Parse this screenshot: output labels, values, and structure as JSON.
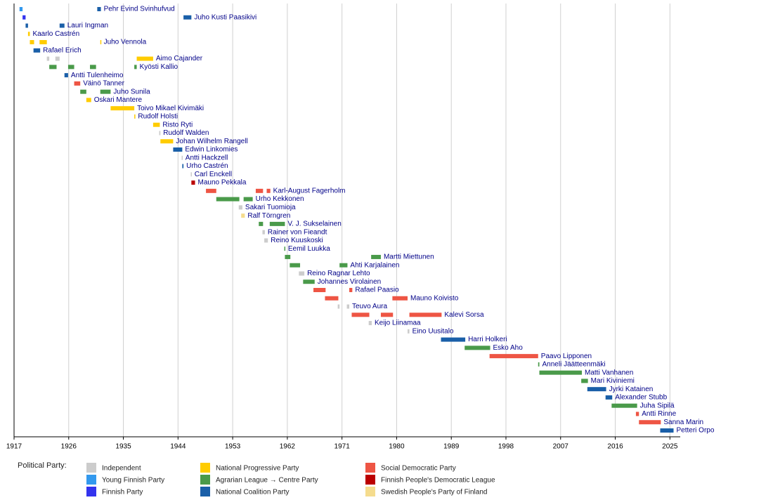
{
  "chart_data": {
    "type": "timeline",
    "xlim": [
      1917,
      2026.7
    ],
    "xticks": [
      1917,
      1926,
      1935,
      1944,
      1953,
      1962,
      1971,
      1980,
      1989,
      1998,
      2007,
      2016,
      2025
    ],
    "grid": true,
    "legend_title": "Political Party:",
    "parties": [
      {
        "name": "Independent",
        "color": "#cccccc"
      },
      {
        "name": "Young Finnish Party",
        "color": "#3399ee"
      },
      {
        "name": "Finnish Party",
        "color": "#3333ee"
      },
      {
        "name": "National Progressive Party",
        "color": "#ffcc00"
      },
      {
        "name": "Agrarian League → Centre Party",
        "color": "#4a9a4a"
      },
      {
        "name": "National Coalition Party",
        "color": "#1a5fa8"
      },
      {
        "name": "Social Democratic Party",
        "color": "#ee5544"
      },
      {
        "name": "Finnish People's Democratic League",
        "color": "#bb0000"
      },
      {
        "name": "Swedish People's Party of Finland",
        "color": "#f5dc8e"
      }
    ],
    "rows": [
      {
        "name": "Pehr Evind Svinhufvud",
        "terms": [
          {
            "start": 1917.9,
            "end": 1918.4,
            "party": "Young Finnish Party"
          },
          {
            "start": 1930.7,
            "end": 1931.3,
            "party": "National Coalition Party"
          }
        ]
      },
      {
        "name": "Juho Kusti Paasikivi",
        "terms": [
          {
            "start": 1918.4,
            "end": 1918.9,
            "party": "Finnish Party"
          },
          {
            "start": 1944.9,
            "end": 1946.2,
            "party": "National Coalition Party"
          }
        ]
      },
      {
        "name": "Lauri Ingman",
        "terms": [
          {
            "start": 1918.9,
            "end": 1919.3,
            "party": "National Coalition Party"
          },
          {
            "start": 1924.5,
            "end": 1925.3,
            "party": "National Coalition Party"
          }
        ]
      },
      {
        "name": "Kaarlo Castrén",
        "terms": [
          {
            "start": 1919.3,
            "end": 1919.6,
            "party": "National Progressive Party"
          }
        ]
      },
      {
        "name": "Juho Vennola",
        "terms": [
          {
            "start": 1919.6,
            "end": 1920.3,
            "party": "National Progressive Party"
          },
          {
            "start": 1921.2,
            "end": 1922.4,
            "party": "National Progressive Party"
          },
          {
            "start": 1931.2,
            "end": 1931.3,
            "party": "National Progressive Party"
          }
        ]
      },
      {
        "name": "Rafael Erich",
        "terms": [
          {
            "start": 1920.2,
            "end": 1921.3,
            "party": "National Coalition Party"
          }
        ]
      },
      {
        "name": "Aimo Cajander",
        "terms": [
          {
            "start": 1922.4,
            "end": 1922.8,
            "party": "Independent"
          },
          {
            "start": 1923.8,
            "end": 1924.5,
            "party": "Independent"
          },
          {
            "start": 1937.2,
            "end": 1939.9,
            "party": "National Progressive Party"
          }
        ]
      },
      {
        "name": "Kyösti Kallio",
        "terms": [
          {
            "start": 1922.8,
            "end": 1924.0,
            "party": "Agrarian League → Centre Party"
          },
          {
            "start": 1925.9,
            "end": 1926.9,
            "party": "Agrarian League → Centre Party"
          },
          {
            "start": 1929.5,
            "end": 1930.5,
            "party": "Agrarian League → Centre Party"
          },
          {
            "start": 1936.8,
            "end": 1937.2,
            "party": "Agrarian League → Centre Party"
          }
        ]
      },
      {
        "name": "Antti Tulenheimo",
        "terms": [
          {
            "start": 1925.3,
            "end": 1925.9,
            "party": "National Coalition Party"
          }
        ]
      },
      {
        "name": "Väinö Tanner",
        "terms": [
          {
            "start": 1926.9,
            "end": 1927.9,
            "party": "Social Democratic Party"
          }
        ]
      },
      {
        "name": "Juho Sunila",
        "terms": [
          {
            "start": 1927.9,
            "end": 1928.9,
            "party": "Agrarian League → Centre Party"
          },
          {
            "start": 1931.2,
            "end": 1932.9,
            "party": "Agrarian League → Centre Party"
          }
        ]
      },
      {
        "name": "Oskari Mantere",
        "terms": [
          {
            "start": 1928.9,
            "end": 1929.7,
            "party": "National Progressive Party"
          }
        ]
      },
      {
        "name": "Toivo Mikael Kivimäki",
        "terms": [
          {
            "start": 1932.9,
            "end": 1936.8,
            "party": "National Progressive Party"
          }
        ]
      },
      {
        "name": "Rudolf Holsti",
        "terms": [
          {
            "start": 1936.8,
            "end": 1936.95,
            "party": "National Progressive Party"
          }
        ]
      },
      {
        "name": "Risto Ryti",
        "terms": [
          {
            "start": 1939.9,
            "end": 1941.0,
            "party": "National Progressive Party"
          }
        ]
      },
      {
        "name": "Rudolf Walden",
        "terms": [
          {
            "start": 1940.9,
            "end": 1941.1,
            "party": "Independent"
          }
        ]
      },
      {
        "name": "Johan Wilhelm Rangell",
        "terms": [
          {
            "start": 1941.1,
            "end": 1943.2,
            "party": "National Progressive Party"
          }
        ]
      },
      {
        "name": "Edwin Linkomies",
        "terms": [
          {
            "start": 1943.2,
            "end": 1944.7,
            "party": "National Coalition Party"
          }
        ]
      },
      {
        "name": "Antti Hackzell",
        "terms": [
          {
            "start": 1944.6,
            "end": 1944.75,
            "party": "Independent"
          }
        ]
      },
      {
        "name": "Urho Castrén",
        "terms": [
          {
            "start": 1944.7,
            "end": 1944.9,
            "party": "National Coalition Party"
          }
        ]
      },
      {
        "name": "Carl Enckell",
        "terms": [
          {
            "start": 1946.1,
            "end": 1946.25,
            "party": "Independent"
          }
        ]
      },
      {
        "name": "Mauno Pekkala",
        "terms": [
          {
            "start": 1946.2,
            "end": 1946.8,
            "party": "Finnish People's Democratic League"
          }
        ]
      },
      {
        "name": "Karl-August Fagerholm",
        "terms": [
          {
            "start": 1948.6,
            "end": 1950.3,
            "party": "Social Democratic Party"
          },
          {
            "start": 1956.8,
            "end": 1958.0,
            "party": "Social Democratic Party"
          },
          {
            "start": 1958.6,
            "end": 1959.2,
            "party": "Social Democratic Party"
          }
        ]
      },
      {
        "name": "Urho Kekkonen",
        "terms": [
          {
            "start": 1950.3,
            "end": 1954.1,
            "party": "Agrarian League → Centre Party"
          },
          {
            "start": 1954.8,
            "end": 1956.3,
            "party": "Agrarian League → Centre Party"
          }
        ]
      },
      {
        "name": "Sakari Tuomioja",
        "terms": [
          {
            "start": 1954.0,
            "end": 1954.6,
            "party": "Independent"
          }
        ]
      },
      {
        "name": "Ralf Törngren",
        "terms": [
          {
            "start": 1954.4,
            "end": 1955.0,
            "party": "Swedish People's Party of Finland"
          }
        ]
      },
      {
        "name": "V. J. Sukselainen",
        "terms": [
          {
            "start": 1957.3,
            "end": 1958.0,
            "party": "Agrarian League → Centre Party"
          },
          {
            "start": 1959.1,
            "end": 1961.6,
            "party": "Agrarian League → Centre Party"
          }
        ]
      },
      {
        "name": "Rainer von Fieandt",
        "terms": [
          {
            "start": 1957.9,
            "end": 1958.3,
            "party": "Independent"
          }
        ]
      },
      {
        "name": "Reino Kuuskoski",
        "terms": [
          {
            "start": 1958.2,
            "end": 1958.8,
            "party": "Independent"
          }
        ]
      },
      {
        "name": "Eemil Luukka",
        "terms": [
          {
            "start": 1961.5,
            "end": 1961.65,
            "party": "Agrarian League → Centre Party"
          }
        ]
      },
      {
        "name": "Martti Miettunen",
        "terms": [
          {
            "start": 1961.6,
            "end": 1962.5,
            "party": "Agrarian League → Centre Party"
          },
          {
            "start": 1975.8,
            "end": 1977.4,
            "party": "Agrarian League → Centre Party"
          }
        ]
      },
      {
        "name": "Ahti Karjalainen",
        "terms": [
          {
            "start": 1962.4,
            "end": 1964.1,
            "party": "Agrarian League → Centre Party"
          },
          {
            "start": 1970.6,
            "end": 1971.9,
            "party": "Agrarian League → Centre Party"
          }
        ]
      },
      {
        "name": "Reino Ragnar Lehto",
        "terms": [
          {
            "start": 1963.9,
            "end": 1964.8,
            "party": "Independent"
          }
        ]
      },
      {
        "name": "Johannes Virolainen",
        "terms": [
          {
            "start": 1964.6,
            "end": 1966.5,
            "party": "Agrarian League → Centre Party"
          }
        ]
      },
      {
        "name": "Rafael Paasio",
        "terms": [
          {
            "start": 1966.3,
            "end": 1968.3,
            "party": "Social Democratic Party"
          },
          {
            "start": 1972.2,
            "end": 1972.7,
            "party": "Social Democratic Party"
          }
        ]
      },
      {
        "name": "Mauno Koivisto",
        "terms": [
          {
            "start": 1968.2,
            "end": 1970.4,
            "party": "Social Democratic Party"
          },
          {
            "start": 1979.3,
            "end": 1981.8,
            "party": "Social Democratic Party"
          }
        ]
      },
      {
        "name": "Teuvo Aura",
        "terms": [
          {
            "start": 1970.3,
            "end": 1970.6,
            "party": "Independent"
          },
          {
            "start": 1971.8,
            "end": 1972.2,
            "party": "Independent"
          }
        ]
      },
      {
        "name": "Kalevi Sorsa",
        "terms": [
          {
            "start": 1972.6,
            "end": 1975.5,
            "party": "Social Democratic Party"
          },
          {
            "start": 1977.4,
            "end": 1979.4,
            "party": "Social Democratic Party"
          },
          {
            "start": 1982.1,
            "end": 1987.4,
            "party": "Social Democratic Party"
          }
        ]
      },
      {
        "name": "Keijo Liinamaa",
        "terms": [
          {
            "start": 1975.4,
            "end": 1975.9,
            "party": "Independent"
          }
        ]
      },
      {
        "name": "Eino Uusitalo",
        "terms": [
          {
            "start": 1981.8,
            "end": 1982.1,
            "party": "Independent"
          }
        ]
      },
      {
        "name": "Harri Holkeri",
        "terms": [
          {
            "start": 1987.3,
            "end": 1991.3,
            "party": "National Coalition Party"
          }
        ]
      },
      {
        "name": "Esko Aho",
        "terms": [
          {
            "start": 1991.2,
            "end": 1995.4,
            "party": "Agrarian League → Centre Party"
          }
        ]
      },
      {
        "name": "Paavo Lipponen",
        "terms": [
          {
            "start": 1995.3,
            "end": 2003.3,
            "party": "Social Democratic Party"
          }
        ]
      },
      {
        "name": "Anneli Jäätteenmäki",
        "terms": [
          {
            "start": 2003.3,
            "end": 2003.5,
            "party": "Agrarian League → Centre Party"
          }
        ]
      },
      {
        "name": "Matti Vanhanen",
        "terms": [
          {
            "start": 2003.5,
            "end": 2010.5,
            "party": "Agrarian League → Centre Party"
          }
        ]
      },
      {
        "name": "Mari Kiviniemi",
        "terms": [
          {
            "start": 2010.4,
            "end": 2011.5,
            "party": "Agrarian League → Centre Party"
          }
        ]
      },
      {
        "name": "Jyrki Katainen",
        "terms": [
          {
            "start": 2011.4,
            "end": 2014.5,
            "party": "National Coalition Party"
          }
        ]
      },
      {
        "name": "Alexander Stubb",
        "terms": [
          {
            "start": 2014.4,
            "end": 2015.5,
            "party": "National Coalition Party"
          }
        ]
      },
      {
        "name": "Juha Sipilä",
        "terms": [
          {
            "start": 2015.4,
            "end": 2019.6,
            "party": "Agrarian League → Centre Party"
          }
        ]
      },
      {
        "name": "Antti Rinne",
        "terms": [
          {
            "start": 2019.4,
            "end": 2019.9,
            "party": "Social Democratic Party"
          }
        ]
      },
      {
        "name": "Sanna Marin",
        "terms": [
          {
            "start": 2019.9,
            "end": 2023.5,
            "party": "Social Democratic Party"
          }
        ]
      },
      {
        "name": "Petteri Orpo",
        "terms": [
          {
            "start": 2023.4,
            "end": 2025.6,
            "party": "National Coalition Party"
          }
        ]
      }
    ]
  }
}
